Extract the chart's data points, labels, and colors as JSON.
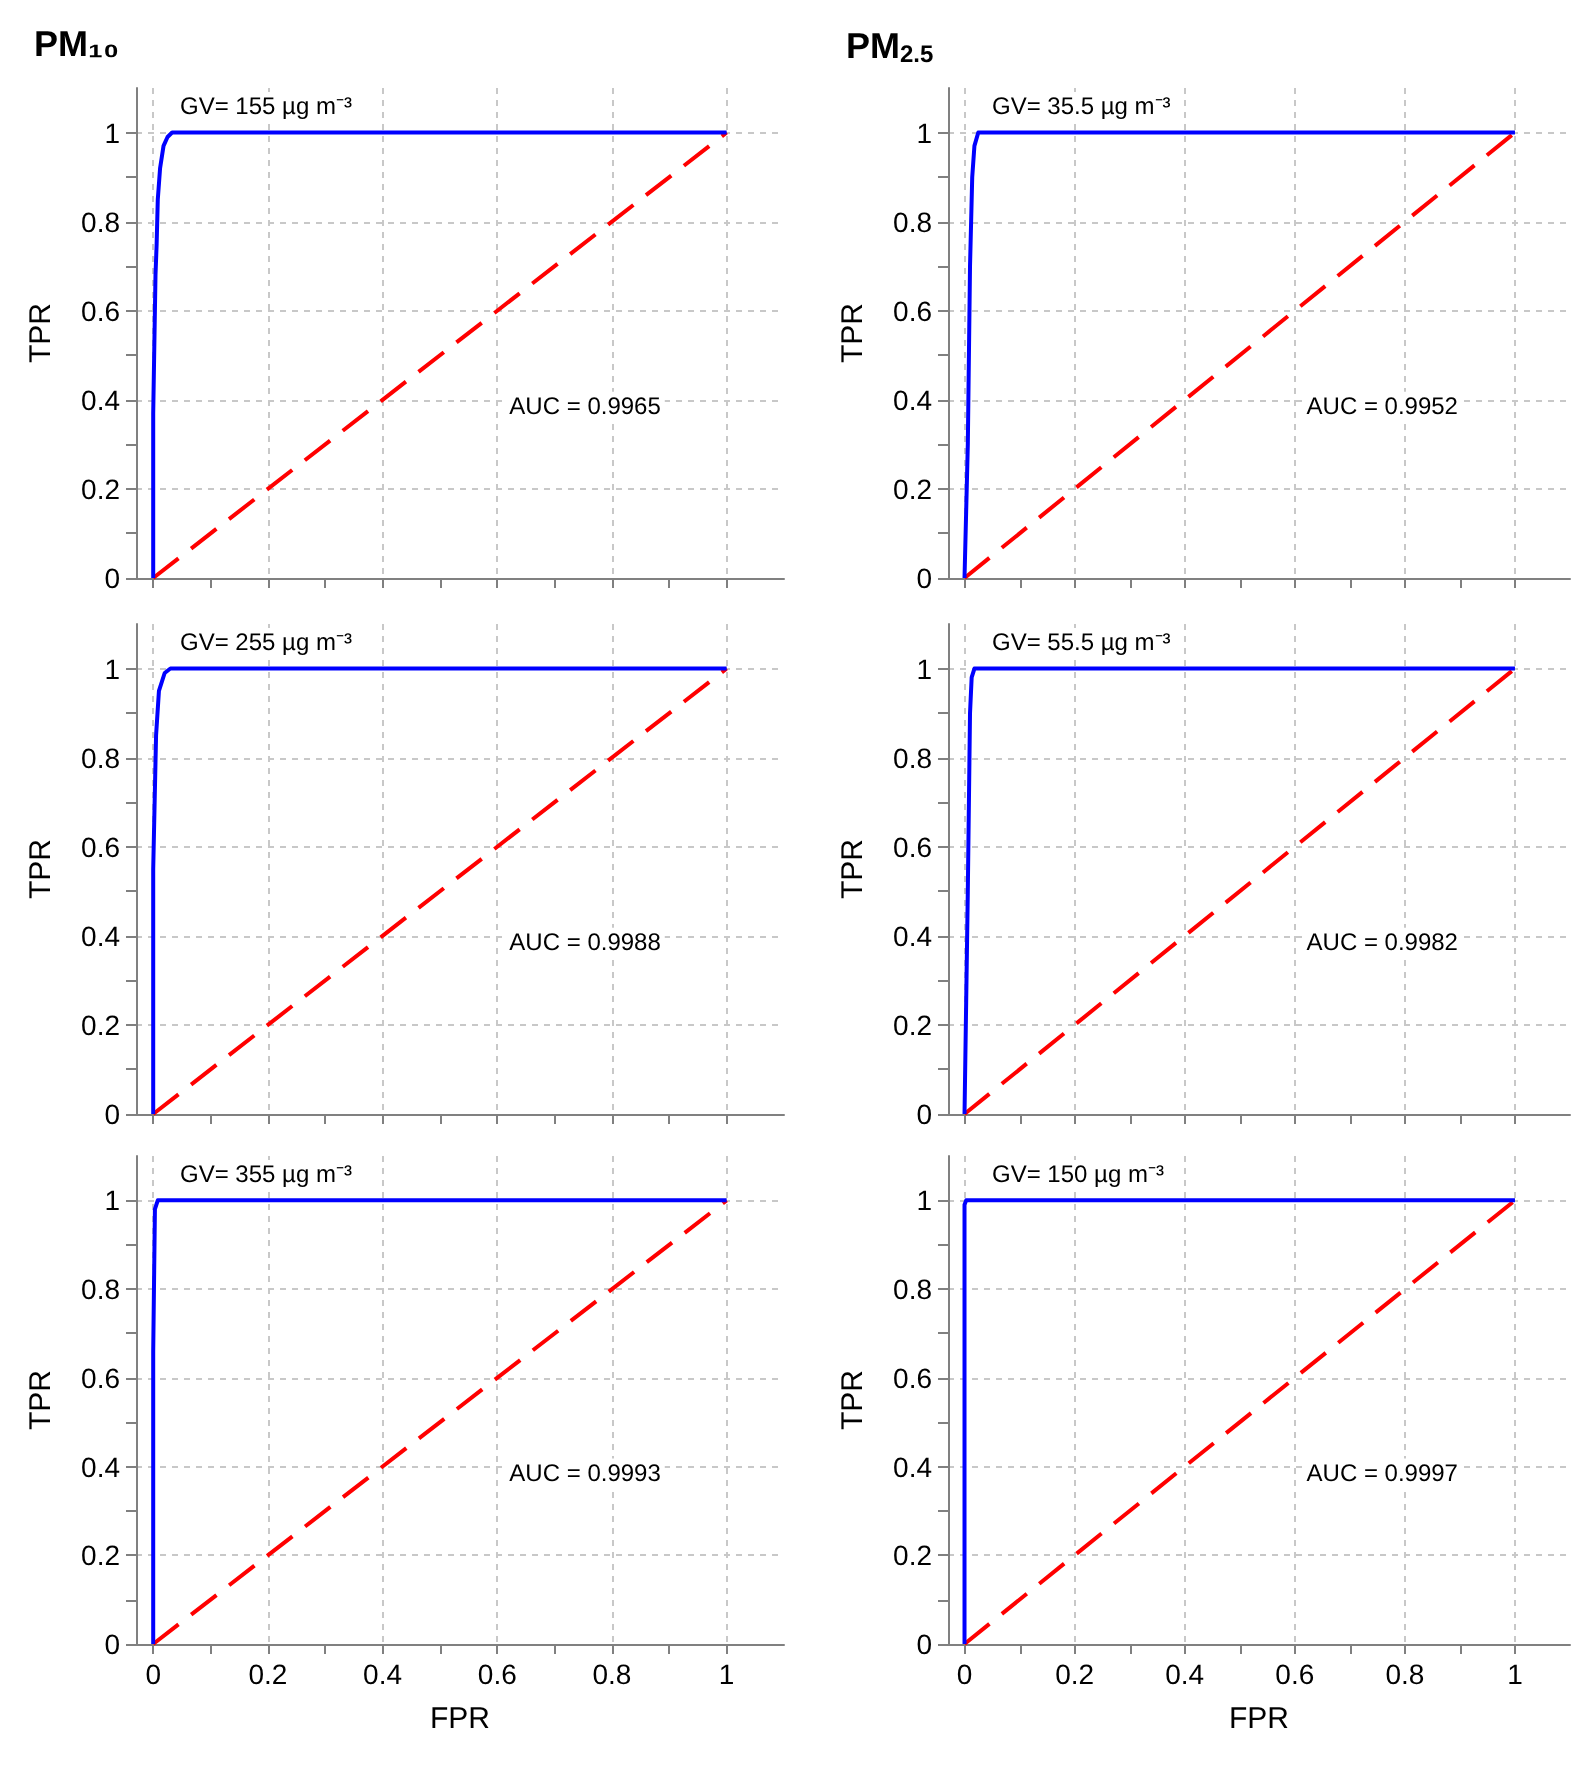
{
  "chart_data": [
    {
      "type": "line",
      "title": "PM₁₀",
      "ylabel": "TPR",
      "annotations": [
        "GV= 155 µg m⁻³",
        "AUC = 0.9965"
      ],
      "xlim": [
        -0.03,
        1.1
      ],
      "ylim": [
        0,
        1.1
      ],
      "xticks": [
        0,
        {
          "value": 0.1,
          "label": null
        },
        0.2,
        {
          "value": 0.3,
          "label": null
        },
        0.4,
        {
          "value": 0.5,
          "label": null
        },
        0.6,
        {
          "value": 0.7,
          "label": null
        },
        0.8,
        {
          "value": 0.9,
          "label": null
        },
        1
      ],
      "yticks": [
        0,
        {
          "value": 0.1,
          "label": null
        },
        0.2,
        {
          "value": 0.3,
          "label": null
        },
        0.4,
        {
          "value": 0.5,
          "label": null
        },
        0.6,
        {
          "value": 0.7,
          "label": null
        },
        0.8,
        {
          "value": 0.9,
          "label": null
        },
        1
      ],
      "grid": true,
      "tick_labels": "y",
      "marker": "none",
      "series": [
        {
          "color": "#0000ff",
          "line_style": "solid",
          "x": [
            0,
            0,
            0.004,
            0.006,
            0.008,
            0.012,
            0.018,
            0.025,
            0.033,
            1
          ],
          "values": [
            0,
            0.37,
            0.68,
            0.75,
            0.85,
            0.92,
            0.97,
            0.99,
            1,
            1
          ]
        },
        {
          "color": "#ff0000",
          "line_style": "dashed",
          "x": [
            0,
            1
          ],
          "values": [
            0,
            1
          ]
        }
      ]
    },
    {
      "type": "line",
      "title": "PM$_{2.5}$",
      "ylabel": "TPR",
      "annotations": [
        "GV= 35.5 µg m⁻³",
        "AUC = 0.9952"
      ],
      "xlim": [
        -0.03,
        1.1
      ],
      "ylim": [
        0,
        1.1
      ],
      "xticks": [
        0,
        {
          "value": 0.1,
          "label": null
        },
        0.2,
        {
          "value": 0.3,
          "label": null
        },
        0.4,
        {
          "value": 0.5,
          "label": null
        },
        0.6,
        {
          "value": 0.7,
          "label": null
        },
        0.8,
        {
          "value": 0.9,
          "label": null
        },
        1
      ],
      "yticks": [
        0,
        {
          "value": 0.1,
          "label": null
        },
        0.2,
        {
          "value": 0.3,
          "label": null
        },
        0.4,
        {
          "value": 0.5,
          "label": null
        },
        0.6,
        {
          "value": 0.7,
          "label": null
        },
        0.8,
        {
          "value": 0.9,
          "label": null
        },
        1
      ],
      "grid": true,
      "tick_labels": "y",
      "marker": "none",
      "series": [
        {
          "color": "#0000ff",
          "line_style": "solid",
          "x": [
            0,
            0.003,
            0.006,
            0.01,
            0.014,
            0.018,
            0.025,
            1
          ],
          "values": [
            0,
            0.15,
            0.3,
            0.7,
            0.9,
            0.97,
            1,
            1
          ]
        },
        {
          "color": "#ff0000",
          "line_style": "dashed",
          "x": [
            0,
            1
          ],
          "values": [
            0,
            1
          ]
        }
      ]
    },
    {
      "type": "line",
      "ylabel": "TPR",
      "annotations": [
        "GV= 255 µg m⁻³",
        "AUC = 0.9988"
      ],
      "xlim": [
        -0.03,
        1.1
      ],
      "ylim": [
        0,
        1.1
      ],
      "xticks": [
        0,
        {
          "value": 0.1,
          "label": null
        },
        0.2,
        {
          "value": 0.3,
          "label": null
        },
        0.4,
        {
          "value": 0.5,
          "label": null
        },
        0.6,
        {
          "value": 0.7,
          "label": null
        },
        0.8,
        {
          "value": 0.9,
          "label": null
        },
        1
      ],
      "yticks": [
        0,
        {
          "value": 0.1,
          "label": null
        },
        0.2,
        {
          "value": 0.3,
          "label": null
        },
        0.4,
        {
          "value": 0.5,
          "label": null
        },
        0.6,
        {
          "value": 0.7,
          "label": null
        },
        0.8,
        {
          "value": 0.9,
          "label": null
        },
        1
      ],
      "grid": true,
      "tick_labels": "y",
      "marker": "none",
      "series": [
        {
          "color": "#0000ff",
          "line_style": "solid",
          "x": [
            0,
            0,
            0.005,
            0.01,
            0.02,
            0.03,
            1
          ],
          "values": [
            0,
            0.55,
            0.85,
            0.95,
            0.99,
            1,
            1
          ]
        },
        {
          "color": "#ff0000",
          "line_style": "dashed",
          "x": [
            0,
            1
          ],
          "values": [
            0,
            1
          ]
        }
      ]
    },
    {
      "type": "line",
      "ylabel": "TPR",
      "annotations": [
        "GV= 55.5 µg m⁻³",
        "AUC = 0.9982"
      ],
      "xlim": [
        -0.03,
        1.1
      ],
      "ylim": [
        0,
        1.1
      ],
      "xticks": [
        0,
        {
          "value": 0.1,
          "label": null
        },
        0.2,
        {
          "value": 0.3,
          "label": null
        },
        0.4,
        {
          "value": 0.5,
          "label": null
        },
        0.6,
        {
          "value": 0.7,
          "label": null
        },
        0.8,
        {
          "value": 0.9,
          "label": null
        },
        1
      ],
      "yticks": [
        0,
        {
          "value": 0.1,
          "label": null
        },
        0.2,
        {
          "value": 0.3,
          "label": null
        },
        0.4,
        {
          "value": 0.5,
          "label": null
        },
        0.6,
        {
          "value": 0.7,
          "label": null
        },
        0.8,
        {
          "value": 0.9,
          "label": null
        },
        1
      ],
      "grid": true,
      "tick_labels": "y",
      "marker": "none",
      "series": [
        {
          "color": "#0000ff",
          "line_style": "solid",
          "x": [
            0,
            0.003,
            0.006,
            0.01,
            0.013,
            0.018,
            1
          ],
          "values": [
            0,
            0.25,
            0.5,
            0.9,
            0.98,
            1,
            1
          ]
        },
        {
          "color": "#ff0000",
          "line_style": "dashed",
          "x": [
            0,
            1
          ],
          "values": [
            0,
            1
          ]
        }
      ]
    },
    {
      "type": "line",
      "xlabel": "FPR",
      "ylabel": "TPR",
      "annotations": [
        "GV= 355 µg m⁻³",
        "AUC = 0.9993"
      ],
      "xlim": [
        -0.03,
        1.1
      ],
      "ylim": [
        0,
        1.1
      ],
      "xticks": [
        0,
        {
          "value": 0.1,
          "label": null
        },
        0.2,
        {
          "value": 0.3,
          "label": null
        },
        0.4,
        {
          "value": 0.5,
          "label": null
        },
        0.6,
        {
          "value": 0.7,
          "label": null
        },
        0.8,
        {
          "value": 0.9,
          "label": null
        },
        1
      ],
      "yticks": [
        0,
        {
          "value": 0.1,
          "label": null
        },
        0.2,
        {
          "value": 0.3,
          "label": null
        },
        0.4,
        {
          "value": 0.5,
          "label": null
        },
        0.6,
        {
          "value": 0.7,
          "label": null
        },
        0.8,
        {
          "value": 0.9,
          "label": null
        },
        1
      ],
      "grid": true,
      "marker": "none",
      "series": [
        {
          "color": "#0000ff",
          "line_style": "solid",
          "x": [
            0,
            0,
            0.003,
            0.008,
            1
          ],
          "values": [
            0,
            0.66,
            0.98,
            1,
            1
          ]
        },
        {
          "color": "#ff0000",
          "line_style": "dashed",
          "x": [
            0,
            1
          ],
          "values": [
            0,
            1
          ]
        }
      ]
    },
    {
      "type": "line",
      "xlabel": "FPR",
      "ylabel": "TPR",
      "annotations": [
        "GV= 150 µg m⁻³",
        "AUC = 0.9997"
      ],
      "xlim": [
        -0.03,
        1.1
      ],
      "ylim": [
        0,
        1.1
      ],
      "xticks": [
        0,
        {
          "value": 0.1,
          "label": null
        },
        0.2,
        {
          "value": 0.3,
          "label": null
        },
        0.4,
        {
          "value": 0.5,
          "label": null
        },
        0.6,
        {
          "value": 0.7,
          "label": null
        },
        0.8,
        {
          "value": 0.9,
          "label": null
        },
        1
      ],
      "yticks": [
        0,
        {
          "value": 0.1,
          "label": null
        },
        0.2,
        {
          "value": 0.3,
          "label": null
        },
        0.4,
        {
          "value": 0.5,
          "label": null
        },
        0.6,
        {
          "value": 0.7,
          "label": null
        },
        0.8,
        {
          "value": 0.9,
          "label": null
        },
        1
      ],
      "grid": true,
      "marker": "none",
      "series": [
        {
          "color": "#0000ff",
          "line_style": "solid",
          "x": [
            0,
            0,
            0.003,
            1
          ],
          "values": [
            0,
            0.99,
            1,
            1
          ]
        },
        {
          "color": "#ff0000",
          "line_style": "dashed",
          "x": [
            0,
            1
          ],
          "values": [
            0,
            1
          ]
        }
      ]
    }
  ]
}
